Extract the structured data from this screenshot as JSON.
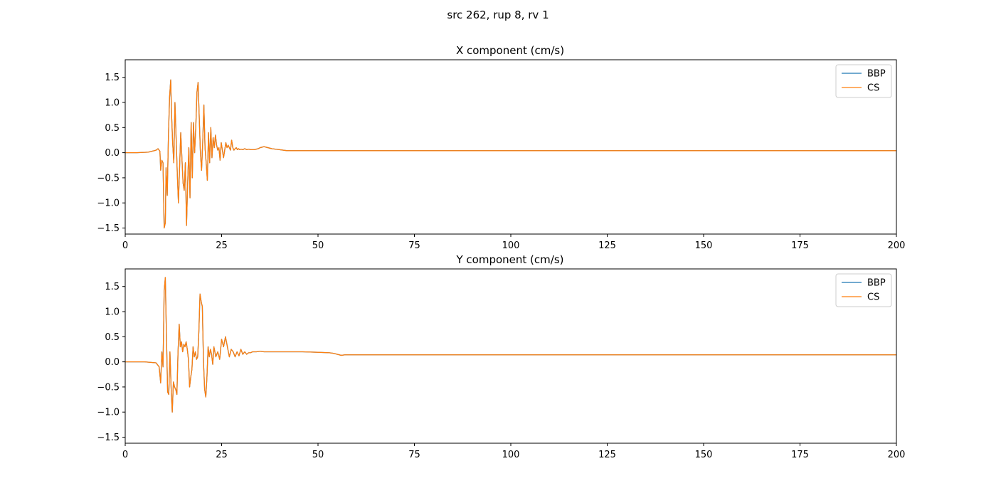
{
  "figure": {
    "suptitle": "src 262, rup 8, rv 1",
    "colors": {
      "BBP": "#1f77b4",
      "CS": "#ff7f0e"
    }
  },
  "chart_data": [
    {
      "type": "line",
      "title": "X component (cm/s)",
      "xlim": [
        0,
        200
      ],
      "ylim": [
        -1.62,
        1.85
      ],
      "xticks": [
        0,
        25,
        50,
        75,
        100,
        125,
        150,
        175,
        200
      ],
      "yticks": [
        -1.5,
        -1.0,
        -0.5,
        0.0,
        0.5,
        1.0,
        1.5
      ],
      "xtick_labels": [
        "0",
        "25",
        "50",
        "75",
        "100",
        "125",
        "150",
        "175",
        "200"
      ],
      "ytick_labels": [
        "−1.5",
        "−1.0",
        "−0.5",
        "0.0",
        "0.5",
        "1.0",
        "1.5"
      ],
      "legend": "top-right",
      "grid": false,
      "series": [
        {
          "name": "BBP",
          "x": [
            0,
            3,
            6,
            8,
            8.5,
            9,
            9.2,
            9.5,
            9.8,
            10.1,
            10.4,
            10.6,
            10.9,
            11.2,
            11.5,
            11.8,
            12,
            12.3,
            12.6,
            12.9,
            13.2,
            13.5,
            13.8,
            14.1,
            14.4,
            14.7,
            15,
            15.3,
            15.6,
            15.9,
            16.2,
            16.5,
            16.8,
            17.1,
            17.4,
            17.7,
            18,
            18.3,
            18.6,
            18.9,
            19.2,
            19.5,
            19.8,
            20.1,
            20.4,
            20.7,
            21,
            21.3,
            21.6,
            21.9,
            22.2,
            22.5,
            22.8,
            23.1,
            23.4,
            23.7,
            24,
            24.3,
            24.6,
            24.9,
            25.2,
            25.5,
            25.8,
            26.1,
            26.4,
            26.7,
            27,
            27.3,
            27.6,
            27.9,
            28.2,
            28.5,
            28.8,
            29.1,
            29.4,
            29.7,
            30,
            30.5,
            31,
            31.5,
            32,
            32.5,
            33,
            33.5,
            34,
            34.5,
            35,
            36,
            37,
            38,
            40,
            42,
            44,
            46,
            48,
            50,
            52,
            54,
            56,
            58,
            60,
            70,
            100,
            150,
            200
          ],
          "y": [
            0,
            0,
            0.01,
            0.05,
            0.08,
            0.03,
            -0.35,
            -0.15,
            -0.2,
            -1.5,
            -1.4,
            -0.3,
            -0.85,
            0.3,
            1.1,
            1.45,
            0.8,
            0.2,
            -0.2,
            1,
            0.3,
            -0.4,
            -1,
            -0.3,
            0.4,
            -0.1,
            -0.6,
            -0.75,
            -0.2,
            -1.45,
            -0.6,
            0.1,
            -0.9,
            0.6,
            -0.5,
            0.6,
            0,
            0.5,
            1.2,
            1.4,
            0.7,
            0,
            -0.35,
            0.2,
            0.95,
            0.1,
            -0.2,
            -0.55,
            0.4,
            -0.2,
            0.5,
            -0.1,
            0.3,
            0.1,
            0.35,
            0.15,
            0.05,
            0.1,
            -0.15,
            0.2,
            0.05,
            -0.1,
            0.05,
            0.2,
            0.1,
            0.15,
            0.1,
            0.05,
            0.25,
            0.1,
            0.05,
            0.08,
            0.1,
            0.06,
            0.08,
            0.06,
            0.07,
            0.06,
            0.08,
            0.06,
            0.07,
            0.06,
            0.06,
            0.06,
            0.07,
            0.08,
            0.1,
            0.12,
            0.1,
            0.08,
            0.06,
            0.04,
            0.04,
            0.04,
            0.04,
            0.04,
            0.04,
            0.04,
            0.04,
            0.04,
            0.04,
            0.04,
            0.04,
            0.04,
            0.04
          ]
        },
        {
          "name": "CS",
          "x": [
            0,
            3,
            6,
            8,
            8.5,
            9,
            9.2,
            9.5,
            9.8,
            10.1,
            10.4,
            10.6,
            10.9,
            11.2,
            11.5,
            11.8,
            12,
            12.3,
            12.6,
            12.9,
            13.2,
            13.5,
            13.8,
            14.1,
            14.4,
            14.7,
            15,
            15.3,
            15.6,
            15.9,
            16.2,
            16.5,
            16.8,
            17.1,
            17.4,
            17.7,
            18,
            18.3,
            18.6,
            18.9,
            19.2,
            19.5,
            19.8,
            20.1,
            20.4,
            20.7,
            21,
            21.3,
            21.6,
            21.9,
            22.2,
            22.5,
            22.8,
            23.1,
            23.4,
            23.7,
            24,
            24.3,
            24.6,
            24.9,
            25.2,
            25.5,
            25.8,
            26.1,
            26.4,
            26.7,
            27,
            27.3,
            27.6,
            27.9,
            28.2,
            28.5,
            28.8,
            29.1,
            29.4,
            29.7,
            30,
            30.5,
            31,
            31.5,
            32,
            32.5,
            33,
            33.5,
            34,
            34.5,
            35,
            36,
            37,
            38,
            40,
            42,
            44,
            46,
            48,
            50,
            52,
            54,
            56,
            58,
            60,
            70,
            100,
            150,
            200
          ],
          "y": [
            0,
            0,
            0.01,
            0.05,
            0.08,
            0.03,
            -0.35,
            -0.15,
            -0.2,
            -1.5,
            -1.4,
            -0.3,
            -0.85,
            0.3,
            1.1,
            1.45,
            0.8,
            0.2,
            -0.2,
            1,
            0.3,
            -0.4,
            -1,
            -0.3,
            0.4,
            -0.1,
            -0.6,
            -0.75,
            -0.2,
            -1.45,
            -0.6,
            0.1,
            -0.9,
            0.6,
            -0.5,
            0.6,
            0,
            0.5,
            1.2,
            1.4,
            0.7,
            0,
            -0.35,
            0.2,
            0.95,
            0.1,
            -0.2,
            -0.55,
            0.4,
            -0.2,
            0.5,
            -0.1,
            0.3,
            0.1,
            0.35,
            0.15,
            0.05,
            0.1,
            -0.15,
            0.2,
            0.05,
            -0.1,
            0.05,
            0.2,
            0.1,
            0.15,
            0.1,
            0.05,
            0.25,
            0.1,
            0.05,
            0.08,
            0.1,
            0.06,
            0.08,
            0.06,
            0.07,
            0.06,
            0.08,
            0.06,
            0.07,
            0.06,
            0.06,
            0.06,
            0.07,
            0.08,
            0.1,
            0.12,
            0.1,
            0.08,
            0.06,
            0.04,
            0.04,
            0.04,
            0.04,
            0.04,
            0.04,
            0.04,
            0.04,
            0.04,
            0.04,
            0.04,
            0.04,
            0.04,
            0.04
          ]
        }
      ]
    },
    {
      "type": "line",
      "title": "Y component (cm/s)",
      "xlim": [
        0,
        200
      ],
      "ylim": [
        -1.62,
        1.85
      ],
      "xticks": [
        0,
        25,
        50,
        75,
        100,
        125,
        150,
        175,
        200
      ],
      "yticks": [
        -1.5,
        -1.0,
        -0.5,
        0.0,
        0.5,
        1.0,
        1.5
      ],
      "xtick_labels": [
        "0",
        "25",
        "50",
        "75",
        "100",
        "125",
        "150",
        "175",
        "200"
      ],
      "ytick_labels": [
        "−1.5",
        "−1.0",
        "−0.5",
        "0.0",
        "0.5",
        "1.0",
        "1.5"
      ],
      "legend": "top-right",
      "grid": false,
      "series": [
        {
          "name": "BBP",
          "x": [
            0,
            5,
            8,
            8.8,
            9.2,
            9.5,
            9.8,
            10.1,
            10.4,
            10.7,
            11,
            11.3,
            11.6,
            11.9,
            12.2,
            12.5,
            12.8,
            13.1,
            13.4,
            13.7,
            14,
            14.3,
            14.6,
            14.9,
            15.2,
            15.5,
            15.8,
            16.1,
            16.4,
            16.7,
            17,
            17.3,
            17.6,
            17.9,
            18.2,
            18.5,
            18.8,
            19.1,
            19.4,
            19.7,
            20,
            20.3,
            20.6,
            20.9,
            21.2,
            21.5,
            21.8,
            22.1,
            22.4,
            22.7,
            23,
            23.5,
            24,
            24.5,
            25,
            25.5,
            26,
            26.5,
            27,
            27.5,
            28,
            28.5,
            29,
            29.5,
            30,
            30.5,
            31,
            31.5,
            32,
            32.5,
            33,
            34,
            35,
            36,
            38,
            42,
            46,
            50,
            53,
            54,
            55,
            56,
            57,
            58,
            60,
            80,
            120,
            160,
            200
          ],
          "y": [
            0,
            0,
            -0.02,
            -0.1,
            -0.42,
            0.2,
            -0.1,
            1.4,
            1.68,
            0.5,
            -0.6,
            -0.65,
            0.2,
            -0.5,
            -1.0,
            -0.4,
            -0.5,
            -0.55,
            -0.65,
            0.2,
            0.75,
            0.3,
            0.4,
            0.2,
            0.35,
            0.3,
            0.4,
            0.25,
            0.05,
            -0.5,
            -0.3,
            -0.15,
            0.3,
            0.1,
            0.2,
            0.05,
            0.1,
            0.6,
            1.35,
            1.2,
            1.1,
            0,
            -0.55,
            -0.7,
            -0.3,
            0.3,
            0.1,
            0.25,
            0.15,
            -0.05,
            0.3,
            0.1,
            0.2,
            0.05,
            0.45,
            0.3,
            0.5,
            0.3,
            0.1,
            0.25,
            0.2,
            0.1,
            0.2,
            0.12,
            0.25,
            0.15,
            0.2,
            0.15,
            0.18,
            0.18,
            0.2,
            0.2,
            0.21,
            0.2,
            0.2,
            0.2,
            0.2,
            0.19,
            0.18,
            0.17,
            0.15,
            0.13,
            0.14,
            0.14,
            0.14,
            0.14,
            0.14,
            0.14,
            0.14
          ]
        },
        {
          "name": "CS",
          "x": [
            0,
            5,
            8,
            8.8,
            9.2,
            9.5,
            9.8,
            10.1,
            10.4,
            10.7,
            11,
            11.3,
            11.6,
            11.9,
            12.2,
            12.5,
            12.8,
            13.1,
            13.4,
            13.7,
            14,
            14.3,
            14.6,
            14.9,
            15.2,
            15.5,
            15.8,
            16.1,
            16.4,
            16.7,
            17,
            17.3,
            17.6,
            17.9,
            18.2,
            18.5,
            18.8,
            19.1,
            19.4,
            19.7,
            20,
            20.3,
            20.6,
            20.9,
            21.2,
            21.5,
            21.8,
            22.1,
            22.4,
            22.7,
            23,
            23.5,
            24,
            24.5,
            25,
            25.5,
            26,
            26.5,
            27,
            27.5,
            28,
            28.5,
            29,
            29.5,
            30,
            30.5,
            31,
            31.5,
            32,
            32.5,
            33,
            34,
            35,
            36,
            38,
            42,
            46,
            50,
            53,
            54,
            55,
            56,
            57,
            58,
            60,
            80,
            120,
            160,
            200
          ],
          "y": [
            0,
            0,
            -0.02,
            -0.1,
            -0.42,
            0.2,
            -0.1,
            1.4,
            1.68,
            0.5,
            -0.6,
            -0.65,
            0.2,
            -0.5,
            -1.0,
            -0.4,
            -0.5,
            -0.55,
            -0.65,
            0.2,
            0.75,
            0.3,
            0.4,
            0.2,
            0.35,
            0.3,
            0.4,
            0.25,
            0.05,
            -0.5,
            -0.3,
            -0.15,
            0.3,
            0.1,
            0.2,
            0.05,
            0.1,
            0.6,
            1.35,
            1.2,
            1.1,
            0,
            -0.55,
            -0.7,
            -0.3,
            0.3,
            0.1,
            0.25,
            0.15,
            -0.05,
            0.3,
            0.1,
            0.2,
            0.05,
            0.45,
            0.3,
            0.5,
            0.3,
            0.1,
            0.25,
            0.2,
            0.1,
            0.2,
            0.12,
            0.25,
            0.15,
            0.2,
            0.15,
            0.18,
            0.18,
            0.2,
            0.2,
            0.21,
            0.2,
            0.2,
            0.2,
            0.2,
            0.19,
            0.18,
            0.17,
            0.15,
            0.13,
            0.14,
            0.14,
            0.14,
            0.14,
            0.14,
            0.14,
            0.14
          ]
        }
      ]
    }
  ]
}
